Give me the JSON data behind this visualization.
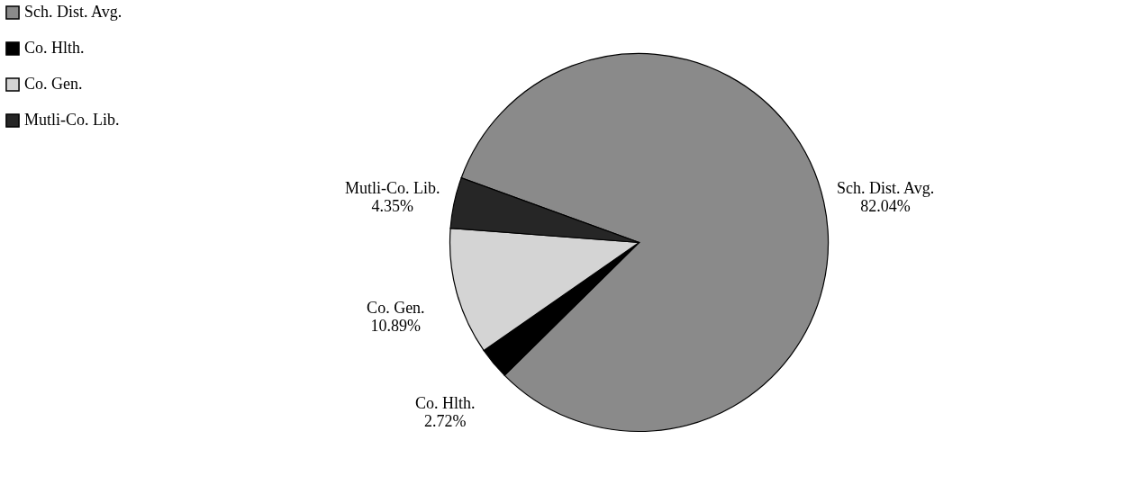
{
  "chart_data": {
    "type": "pie",
    "categories": [
      "Sch. Dist. Avg.",
      "Co. Hlth.",
      "Co. Gen.",
      "Mutli-Co. Lib."
    ],
    "values": [
      82.04,
      2.72,
      10.89,
      4.35
    ],
    "colors": [
      "#8a8a8a",
      "#000000",
      "#d4d4d4",
      "#262626"
    ],
    "value_labels": [
      "82.04%",
      "2.72%",
      "10.89%",
      "4.35%"
    ],
    "legend": "left"
  }
}
